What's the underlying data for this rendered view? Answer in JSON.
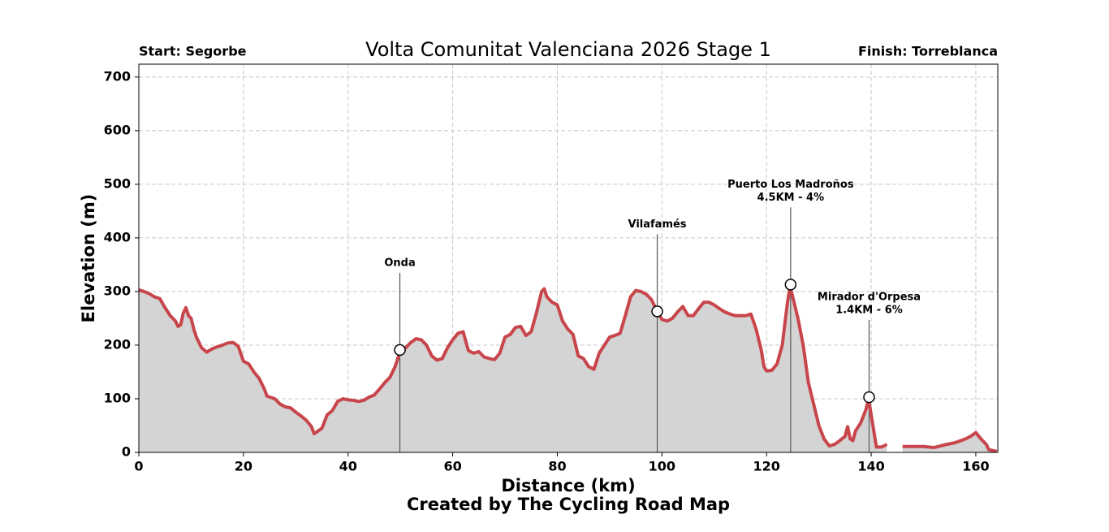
{
  "chart_data": {
    "type": "line",
    "title": "Volta Comunitat Valenciana 2026 Stage 1",
    "subtitle_left": "Start: Segorbe",
    "subtitle_right": "Finish: Torreblanca",
    "xlabel": "Distance (km)",
    "ylabel": "Elevation (m)",
    "credit": "Created by The Cycling Road Map",
    "xlim": [
      0,
      164.2
    ],
    "ylim": [
      0,
      724
    ],
    "xticks": [
      0,
      20,
      40,
      60,
      80,
      100,
      120,
      140,
      160
    ],
    "yticks": [
      0,
      100,
      200,
      300,
      400,
      500,
      600,
      700
    ],
    "grid": true,
    "color": "#c8464b",
    "fill_color": "#d4d4d4",
    "x": [
      0,
      1,
      2,
      3,
      4,
      5,
      6,
      7,
      7.5,
      8,
      8.5,
      9,
      9.5,
      10,
      10.5,
      11,
      12,
      13,
      14,
      15,
      16,
      17,
      18,
      19,
      20,
      21,
      22,
      23,
      24,
      24.5,
      26,
      27,
      28,
      29,
      30,
      31,
      32,
      33,
      33.5,
      34,
      35,
      36,
      37,
      38,
      39,
      40,
      41,
      42,
      43,
      44,
      45,
      46,
      47,
      48,
      49,
      50,
      51,
      52,
      53,
      54,
      55,
      56,
      57,
      58,
      59,
      60,
      61,
      62,
      63,
      64,
      65,
      66,
      67,
      68,
      69,
      70,
      71,
      72,
      73,
      74,
      75,
      76,
      77,
      77.5,
      78,
      79,
      80,
      81,
      82,
      83,
      84,
      85,
      86,
      87,
      88,
      89,
      90,
      91,
      92,
      93,
      94,
      95,
      96,
      97,
      98,
      99,
      100,
      101,
      102,
      103,
      104,
      105,
      106,
      107,
      108,
      109,
      110,
      111,
      112,
      113,
      114,
      115,
      116,
      117,
      118,
      119,
      119.5,
      120,
      121,
      122,
      123,
      124,
      124.5,
      125,
      126,
      127,
      128,
      129,
      130,
      131,
      132,
      133,
      134,
      135,
      135.5,
      136,
      136.5,
      137,
      138,
      139,
      139.5,
      140,
      141,
      142,
      143,
      144.5,
      146,
      148,
      150,
      152,
      154,
      156,
      158,
      159,
      160,
      161,
      162,
      162.5,
      164
    ],
    "values": [
      303,
      300,
      296,
      290,
      287,
      270,
      255,
      245,
      235,
      238,
      260,
      270,
      255,
      250,
      230,
      215,
      195,
      187,
      193,
      197,
      200,
      204,
      205,
      198,
      170,
      165,
      150,
      138,
      118,
      105,
      100,
      90,
      85,
      83,
      75,
      68,
      60,
      48,
      35,
      38,
      45,
      70,
      78,
      95,
      100,
      98,
      97,
      95,
      97,
      103,
      107,
      118,
      130,
      140,
      160,
      190,
      195,
      205,
      212,
      210,
      200,
      180,
      172,
      175,
      195,
      210,
      222,
      225,
      190,
      185,
      188,
      178,
      175,
      173,
      185,
      215,
      220,
      233,
      235,
      218,
      225,
      260,
      300,
      305,
      290,
      280,
      275,
      245,
      230,
      220,
      180,
      175,
      160,
      155,
      185,
      200,
      215,
      218,
      222,
      255,
      290,
      302,
      300,
      295,
      285,
      265,
      248,
      245,
      250,
      262,
      272,
      255,
      255,
      268,
      280,
      280,
      275,
      268,
      262,
      258,
      255,
      255,
      255,
      258,
      230,
      190,
      160,
      152,
      153,
      165,
      200,
      280,
      310,
      290,
      250,
      200,
      130,
      90,
      50,
      25,
      12,
      15,
      22,
      30,
      48,
      25,
      22,
      40,
      55,
      80,
      100,
      70,
      10,
      10,
      15,
      null,
      11,
      11,
      11,
      9,
      14,
      18,
      25,
      30,
      37,
      25,
      15,
      5,
      2
    ],
    "annotations": [
      {
        "label": [
          "Onda"
        ],
        "x": 49.9,
        "y": 191
      },
      {
        "label": [
          "Vilafamés"
        ],
        "x": 99.1,
        "y": 263
      },
      {
        "label": [
          "Puerto Los Madroños",
          "4.5KM - 4%"
        ],
        "x": 124.6,
        "y": 313
      },
      {
        "label": [
          "Mirador d'Orpesa",
          "1.4KM - 6%"
        ],
        "x": 139.6,
        "y": 103
      }
    ]
  }
}
